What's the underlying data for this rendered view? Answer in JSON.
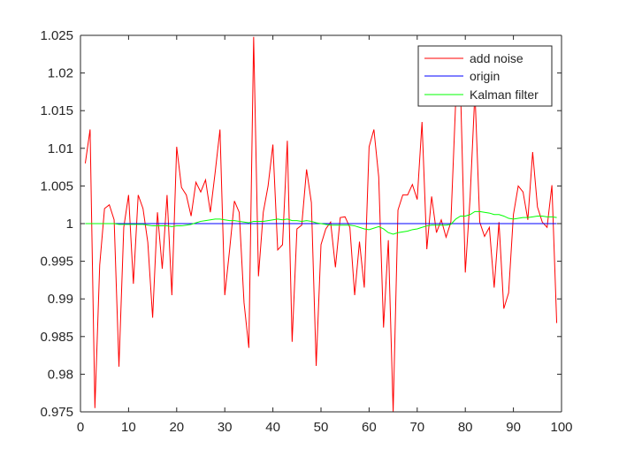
{
  "chart_data": {
    "type": "line",
    "title": "",
    "xlabel": "",
    "ylabel": "",
    "xlim": [
      0,
      100
    ],
    "ylim": [
      0.975,
      1.025
    ],
    "x_ticks": [
      0,
      10,
      20,
      30,
      40,
      50,
      60,
      70,
      80,
      90,
      100
    ],
    "x_tick_labels": [
      "0",
      "10",
      "20",
      "30",
      "40",
      "50",
      "60",
      "70",
      "80",
      "90",
      "100"
    ],
    "y_ticks": [
      0.975,
      0.98,
      0.985,
      0.99,
      0.995,
      1.0,
      1.005,
      1.01,
      1.015,
      1.02,
      1.025
    ],
    "y_tick_labels": [
      "0.975",
      "0.98",
      "0.985",
      "0.99",
      "0.995",
      "1",
      "1.005",
      "1.01",
      "1.015",
      "1.02",
      "1.025"
    ],
    "grid": false,
    "legend_position": "top-right",
    "x": [
      1,
      2,
      3,
      4,
      5,
      6,
      7,
      8,
      9,
      10,
      11,
      12,
      13,
      14,
      15,
      16,
      17,
      18,
      19,
      20,
      21,
      22,
      23,
      24,
      25,
      26,
      27,
      28,
      29,
      30,
      31,
      32,
      33,
      34,
      35,
      36,
      37,
      38,
      39,
      40,
      41,
      42,
      43,
      44,
      45,
      46,
      47,
      48,
      49,
      50,
      51,
      52,
      53,
      54,
      55,
      56,
      57,
      58,
      59,
      60,
      61,
      62,
      63,
      64,
      65,
      66,
      67,
      68,
      69,
      70,
      71,
      72,
      73,
      74,
      75,
      76,
      77,
      78,
      79,
      80,
      81,
      82,
      83,
      84,
      85,
      86,
      87,
      88,
      89,
      90,
      91,
      92,
      93,
      94,
      95,
      96,
      97,
      98,
      99
    ],
    "series": [
      {
        "name": "add noise",
        "color": "#ff0000",
        "values": [
          1.008,
          1.0125,
          0.9755,
          0.9945,
          1.002,
          1.0025,
          1.0005,
          0.981,
          0.9995,
          1.0038,
          0.992,
          1.0038,
          1.002,
          0.9975,
          0.9875,
          1.0015,
          0.994,
          1.0038,
          0.9905,
          1.0102,
          1.0048,
          1.0038,
          1.001,
          1.0055,
          1.0042,
          1.0058,
          1.0015,
          1.0068,
          1.0125,
          0.9905,
          0.9965,
          1.003,
          1.0015,
          0.9895,
          0.9835,
          1.0248,
          0.993,
          1.0015,
          1.005,
          1.0105,
          0.9965,
          0.9972,
          1.011,
          0.9843,
          0.9993,
          0.9998,
          1.0072,
          1.0028,
          0.9811,
          0.9972,
          0.9993,
          1.0002,
          0.9942,
          1.0008,
          1.0009,
          0.9995,
          0.9905,
          0.9976,
          0.9915,
          1.0102,
          1.0125,
          1.0062,
          0.9862,
          0.9978,
          0.975,
          1.0018,
          1.0038,
          1.0038,
          1.0052,
          1.0032,
          1.0135,
          0.9966,
          1.0036,
          0.9988,
          1.0005,
          0.9982,
          1.0002,
          1.0162,
          1.018,
          0.9935,
          1.0035,
          1.0175,
          1.0002,
          0.9983,
          0.9995,
          0.9915,
          1.0002,
          0.9887,
          0.9908,
          1.0012,
          1.005,
          1.0042,
          1.0005,
          1.0095,
          1.0022,
          1.0002,
          0.9995,
          1.0051,
          0.9868
        ]
      },
      {
        "name": "origin",
        "color": "#0000ff",
        "values": [
          1,
          1,
          1,
          1,
          1,
          1,
          1,
          1,
          1,
          1,
          1,
          1,
          1,
          1,
          1,
          1,
          1,
          1,
          1,
          1,
          1,
          1,
          1,
          1,
          1,
          1,
          1,
          1,
          1,
          1,
          1,
          1,
          1,
          1,
          1,
          1,
          1,
          1,
          1,
          1,
          1,
          1,
          1,
          1,
          1,
          1,
          1,
          1,
          1,
          1,
          1,
          1,
          1,
          1,
          1,
          1,
          1,
          1,
          1,
          1,
          1,
          1,
          1,
          1,
          1,
          1,
          1,
          1,
          1,
          1,
          1,
          1,
          1,
          1,
          1,
          1,
          1,
          1,
          1,
          1,
          1,
          1,
          1,
          1,
          1,
          1,
          1,
          1,
          1,
          1,
          1,
          1,
          1,
          1,
          1,
          1,
          1,
          1,
          1
        ]
      },
      {
        "name": "Kalman filter",
        "color": "#00ff00",
        "values": [
          1.0,
          1.0,
          1.0,
          1.0,
          1.0,
          1.0,
          1.0,
          0.9999,
          0.9999,
          0.9999,
          0.9999,
          0.9999,
          0.9999,
          0.9998,
          0.9997,
          0.9997,
          0.9997,
          0.9997,
          0.9996,
          0.9997,
          0.9997,
          0.9998,
          0.9999,
          1.0001,
          1.0003,
          1.0004,
          1.0005,
          1.0006,
          1.0006,
          1.0005,
          1.0004,
          1.0004,
          1.0003,
          1.0002,
          1.0001,
          1.0003,
          1.0003,
          1.0003,
          1.0004,
          1.0005,
          1.0006,
          1.0005,
          1.0006,
          1.0004,
          1.0004,
          1.0003,
          1.0004,
          1.0003,
          1.0001,
          1.0,
          0.9999,
          0.9998,
          0.9998,
          0.9998,
          0.9998,
          0.9998,
          0.9997,
          0.9995,
          0.9993,
          0.9992,
          0.9994,
          0.9996,
          0.9993,
          0.9988,
          0.9986,
          0.9988,
          0.9989,
          0.999,
          0.9992,
          0.9993,
          0.9995,
          0.9997,
          0.9998,
          0.9998,
          0.9998,
          0.9998,
          0.9999,
          1.0006,
          1.001,
          1.001,
          1.0012,
          1.0016,
          1.0016,
          1.0015,
          1.0014,
          1.0012,
          1.0012,
          1.001,
          1.0007,
          1.0006,
          1.0007,
          1.0008,
          1.0008,
          1.0009,
          1.001,
          1.001,
          1.0009,
          1.0009,
          1.0008
        ]
      }
    ]
  }
}
